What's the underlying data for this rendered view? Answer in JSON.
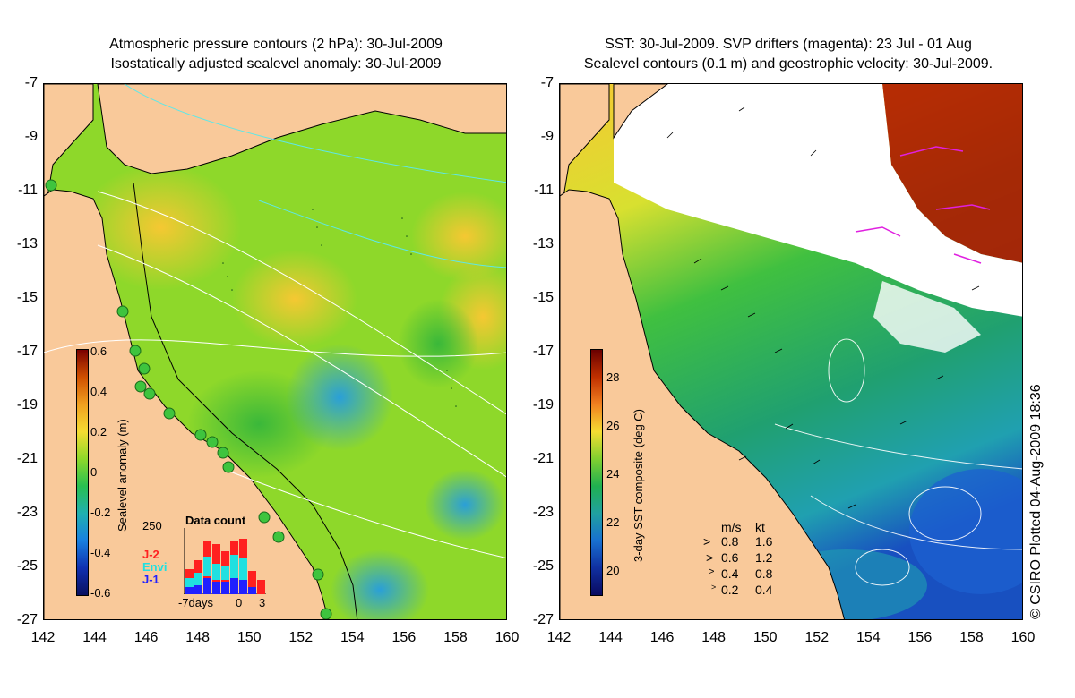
{
  "left_panel": {
    "title_line1": "Atmospheric pressure contours (2 hPa): 30-Jul-2009",
    "title_line2": "Isostatically adjusted sealevel anomaly: 30-Jul-2009",
    "colorbar_label": "Sealevel anomaly (m)",
    "colorbar_ticks": [
      "0.6",
      "0.4",
      "0.2",
      "0",
      "-0.2",
      "-0.4",
      "-0.6"
    ],
    "inset": {
      "title": "Data count",
      "ymax_label": "250",
      "series_labels": [
        "J-2",
        "Envi",
        "J-1"
      ],
      "series_colors": [
        "#ff2020",
        "#20e0e0",
        "#2020ff"
      ],
      "x_labels": [
        "-7days",
        "0",
        "3"
      ]
    }
  },
  "right_panel": {
    "title_line1": "SST: 30-Jul-2009. SVP drifters (magenta): 23 Jul - 01 Aug",
    "title_line2": "Sealevel contours (0.1 m) and geostrophic velocity: 30-Jul-2009.",
    "colorbar_label": "3-day SST composite (deg C)",
    "colorbar_ticks": [
      "28",
      "26",
      "24",
      "22",
      "20"
    ],
    "velocity_legend": {
      "header_ms": "m/s",
      "header_kt": "kt",
      "rows": [
        {
          "ms": "0.8",
          "kt": "1.6"
        },
        {
          "ms": "0.6",
          "kt": "1.2"
        },
        {
          "ms": "0.4",
          "kt": "0.8"
        },
        {
          "ms": "0.2",
          "kt": "0.4"
        }
      ]
    }
  },
  "y_labels": [
    "-7",
    "-9",
    "-11",
    "-13",
    "-15",
    "-17",
    "-19",
    "-21",
    "-23",
    "-25",
    "-27"
  ],
  "x_labels": [
    "142",
    "144",
    "146",
    "148",
    "150",
    "152",
    "154",
    "156",
    "158",
    "160"
  ],
  "credit": "© CSIRO Plotted 04-Aug-2009 18:36",
  "colors": {
    "land": "#f9c99a",
    "sla_high": "#f0a020",
    "sla_mid": "#8ed82a",
    "sla_low": "#2aa0d8",
    "sst_warm": "#b01800",
    "sst_mid": "#28c050",
    "sst_cool": "#1040c0"
  }
}
